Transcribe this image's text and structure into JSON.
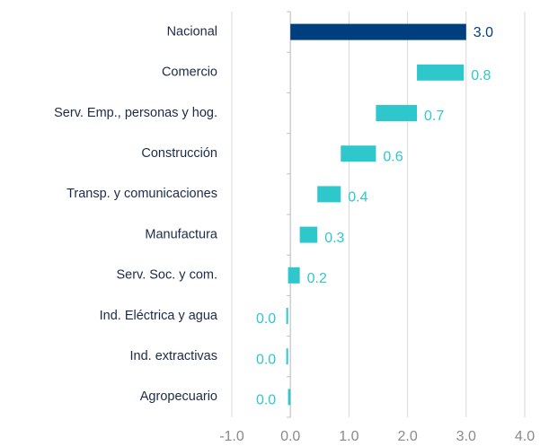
{
  "chart_data": {
    "type": "waterfall",
    "categories": [
      "Nacional",
      "Comercio",
      "Serv. Emp., personas y hog.",
      "Construcción",
      "Transp. y comunicaciones",
      "Manufactura",
      "Serv. Soc. y com.",
      "Ind. Eléctrica y agua",
      "Ind. extractivas",
      "Agropecuario"
    ],
    "values": [
      3.0,
      0.8,
      0.7,
      0.6,
      0.4,
      0.3,
      0.2,
      0.03,
      -0.03,
      -0.04
    ],
    "value_labels": [
      "3.0",
      "0.8",
      "0.7",
      "0.6",
      "0.4",
      "0.3",
      "0.2",
      "0.0",
      "0.0",
      "0.0"
    ],
    "colors": [
      "#003f7d",
      "#2ec8cc",
      "#2ec8cc",
      "#2ec8cc",
      "#2ec8cc",
      "#2ec8cc",
      "#2ec8cc",
      "#2ec8cc",
      "#2ec8cc",
      "#2ec8cc"
    ],
    "xlim": [
      -1.0,
      4.0
    ],
    "xticks": [
      {
        "value": -1,
        "label": "-1.0"
      },
      {
        "value": 0,
        "label": "0.0"
      },
      {
        "value": 1,
        "label": "1.0"
      },
      {
        "value": 2,
        "label": "2.0"
      },
      {
        "value": 3,
        "label": "3.0"
      },
      {
        "value": 4,
        "label": "4.0"
      }
    ],
    "grid": true
  }
}
